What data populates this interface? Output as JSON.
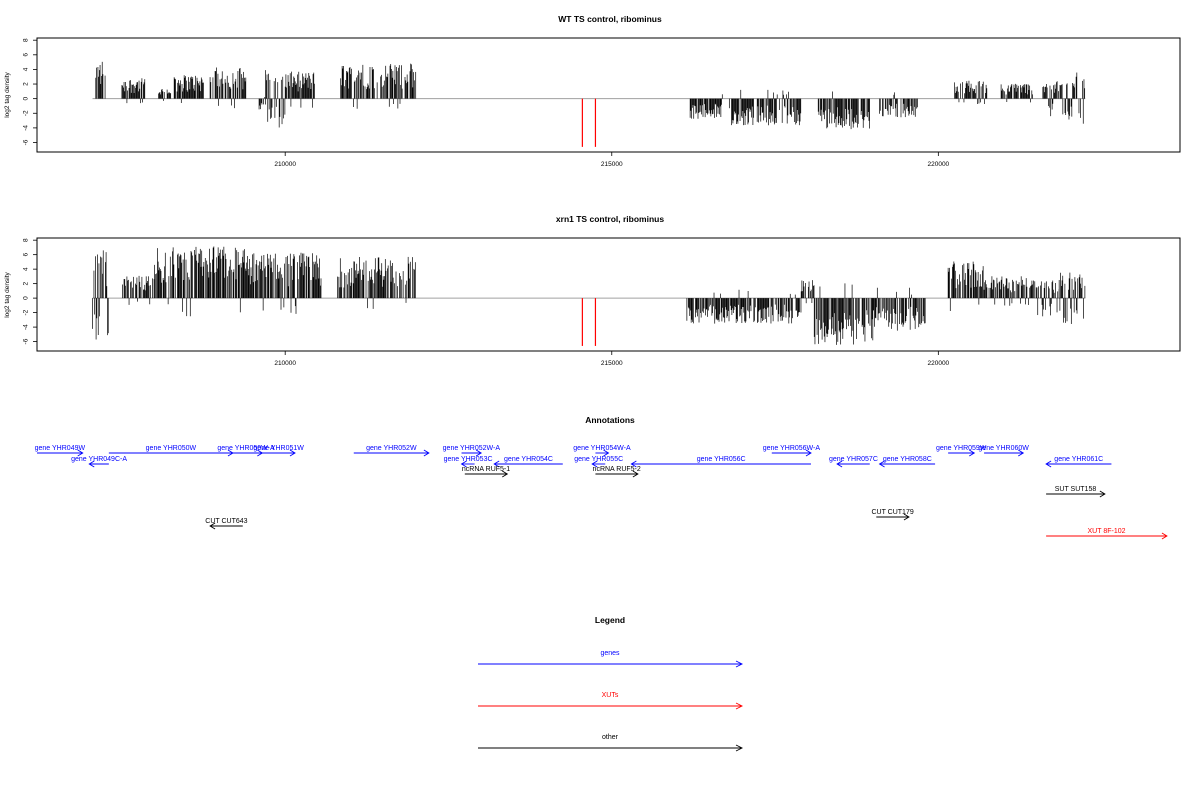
{
  "chart_data": [
    {
      "type": "bar",
      "title": "WT TS control, ribominus",
      "ylabel": "log2 tag density",
      "ylim": [
        -7.3,
        8.3
      ],
      "yticks": [
        -6,
        -4,
        -2,
        0,
        2,
        4,
        6,
        8
      ],
      "xlim": [
        206200,
        223700
      ],
      "xticks": [
        210000,
        215000,
        220000
      ],
      "grid": false,
      "markers": [
        {
          "x": 214550,
          "y": -6.6,
          "color": "#ff0000"
        },
        {
          "x": 214750,
          "y": -6.6,
          "color": "#ff0000"
        }
      ],
      "segments": [
        {
          "from": 207100,
          "to": 207250,
          "strand": "plus",
          "max": 5.3
        },
        {
          "from": 207500,
          "to": 207850,
          "strand": "plus",
          "max": 2.8
        },
        {
          "from": 208050,
          "to": 208250,
          "strand": "plus",
          "max": 1.5
        },
        {
          "from": 208300,
          "to": 208750,
          "strand": "plus",
          "max": 3.3
        },
        {
          "from": 208850,
          "to": 209400,
          "strand": "plus",
          "max": 4.3
        },
        {
          "from": 209600,
          "to": 209700,
          "strand": "minus",
          "max": 1.5
        },
        {
          "from": 209700,
          "to": 210000,
          "strand": "mixed",
          "max": 4.0
        },
        {
          "from": 210000,
          "to": 210450,
          "strand": "plus",
          "max": 3.7
        },
        {
          "from": 210850,
          "to": 212000,
          "strand": "plus",
          "max": 4.8
        },
        {
          "from": 216200,
          "to": 216700,
          "strand": "minus",
          "max": 2.8
        },
        {
          "from": 216800,
          "to": 217900,
          "strand": "minus",
          "max": 3.7
        },
        {
          "from": 218150,
          "to": 218950,
          "strand": "minus",
          "max": 4.2
        },
        {
          "from": 219100,
          "to": 219700,
          "strand": "minus",
          "max": 2.6
        },
        {
          "from": 220250,
          "to": 220750,
          "strand": "plus",
          "max": 2.5
        },
        {
          "from": 220950,
          "to": 221450,
          "strand": "plus",
          "max": 2.1
        },
        {
          "from": 221600,
          "to": 222000,
          "strand": "mixed",
          "max": 2.4
        },
        {
          "from": 222000,
          "to": 222250,
          "strand": "mixed",
          "max": 4.0
        }
      ]
    },
    {
      "type": "bar",
      "title": "xrn1 TS control, ribominus",
      "ylabel": "log2 tag density",
      "ylim": [
        -7.3,
        8.3
      ],
      "yticks": [
        -6,
        -4,
        -2,
        0,
        2,
        4,
        6,
        8
      ],
      "xlim": [
        206200,
        223700
      ],
      "xticks": [
        210000,
        215000,
        220000
      ],
      "grid": false,
      "markers": [
        {
          "x": 214550,
          "y": -6.6,
          "color": "#ff0000"
        },
        {
          "x": 214750,
          "y": -6.6,
          "color": "#ff0000"
        }
      ],
      "segments": [
        {
          "from": 207050,
          "to": 207300,
          "strand": "mixed",
          "max": 6.6
        },
        {
          "from": 207500,
          "to": 208000,
          "strand": "plus",
          "max": 3.1
        },
        {
          "from": 208000,
          "to": 209400,
          "strand": "plus",
          "max": 7.2
        },
        {
          "from": 209400,
          "to": 210550,
          "strand": "plus",
          "max": 6.3
        },
        {
          "from": 210800,
          "to": 212000,
          "strand": "plus",
          "max": 5.7
        },
        {
          "from": 216150,
          "to": 217000,
          "strand": "minus",
          "max": 3.6
        },
        {
          "from": 217000,
          "to": 217900,
          "strand": "minus",
          "max": 3.5
        },
        {
          "from": 217900,
          "to": 218100,
          "strand": "plus",
          "max": 2.5
        },
        {
          "from": 218100,
          "to": 219000,
          "strand": "minus",
          "max": 6.6
        },
        {
          "from": 219000,
          "to": 219800,
          "strand": "minus",
          "max": 4.5
        },
        {
          "from": 220150,
          "to": 220700,
          "strand": "plus",
          "max": 5.3
        },
        {
          "from": 220700,
          "to": 221500,
          "strand": "plus",
          "max": 3.1
        },
        {
          "from": 221500,
          "to": 221850,
          "strand": "mixed",
          "max": 2.6
        },
        {
          "from": 221850,
          "to": 222250,
          "strand": "mixed",
          "max": 3.8
        }
      ]
    }
  ],
  "annotations": {
    "title": "Annotations",
    "genes": [
      {
        "label": "gene YHR049W",
        "strand": "+",
        "from": 206200,
        "to": 206900,
        "row": 0
      },
      {
        "label": "gene YHR049C-A",
        "strand": "-",
        "from": 207000,
        "to": 207300,
        "row": 1
      },
      {
        "label": "gene YHR050W",
        "strand": "+",
        "from": 207300,
        "to": 209200,
        "row": 0
      },
      {
        "label": "gene YHR050W-A",
        "strand": "+",
        "from": 209150,
        "to": 209650,
        "row": 0
      },
      {
        "label": "gene YHR051W",
        "strand": "+",
        "from": 209650,
        "to": 210150,
        "row": 0
      },
      {
        "label": "gene YHR052W",
        "strand": "+",
        "from": 211050,
        "to": 212200,
        "row": 0
      },
      {
        "label": "gene YHR052W-A",
        "strand": "+",
        "from": 212700,
        "to": 213000,
        "row": 0
      },
      {
        "label": "gene YHR053C",
        "strand": "-",
        "from": 212700,
        "to": 212900,
        "row": 1
      },
      {
        "label": "gene YHR054C",
        "strand": "-",
        "from": 213200,
        "to": 214250,
        "row": 1
      },
      {
        "label": "gene YHR054W-A",
        "strand": "+",
        "from": 214750,
        "to": 214950,
        "row": 0
      },
      {
        "label": "gene YHR055C",
        "strand": "-",
        "from": 214700,
        "to": 214900,
        "row": 1
      },
      {
        "label": "gene YHR056C",
        "strand": "-",
        "from": 215300,
        "to": 218050,
        "row": 1
      },
      {
        "label": "gene YHR056W-A",
        "strand": "+",
        "from": 217450,
        "to": 218050,
        "row": 0
      },
      {
        "label": "gene YHR057C",
        "strand": "-",
        "from": 218450,
        "to": 218950,
        "row": 1
      },
      {
        "label": "gene YHR058C",
        "strand": "-",
        "from": 219100,
        "to": 219950,
        "row": 1
      },
      {
        "label": "gene YHR059W",
        "strand": "+",
        "from": 220150,
        "to": 220550,
        "row": 0
      },
      {
        "label": "gene YHR060W",
        "strand": "+",
        "from": 220700,
        "to": 221300,
        "row": 0
      },
      {
        "label": "gene YHR061C",
        "strand": "-",
        "from": 221650,
        "to": 222650,
        "row": 1
      }
    ],
    "ncrnas": [
      {
        "label": "ncRNA RUF5-1",
        "strand": "+",
        "from": 212750,
        "to": 213400,
        "row": 2
      },
      {
        "label": "ncRNA RUF5-2",
        "strand": "+",
        "from": 214750,
        "to": 215400,
        "row": 2
      }
    ],
    "suts": [
      {
        "label": "SUT SUT158",
        "strand": "+",
        "from": 221650,
        "to": 222550,
        "row": 3
      }
    ],
    "cuts": [
      {
        "label": "CUT CUT643",
        "strand": "-",
        "from": 208850,
        "to": 209350,
        "row": 5
      },
      {
        "label": "CUT CUT179",
        "strand": "+",
        "from": 219050,
        "to": 219550,
        "row": 4
      }
    ],
    "xuts": [
      {
        "label": "XUT 8F-102",
        "strand": "+",
        "from": 221650,
        "to": 223500,
        "row": 6
      }
    ]
  },
  "legend": {
    "title": "Legend",
    "items": [
      {
        "label": "genes",
        "color": "#0000ff"
      },
      {
        "label": "XUTs",
        "color": "#ff0000"
      },
      {
        "label": "other",
        "color": "#000000"
      }
    ]
  },
  "colors": {
    "gene": "#0000ff",
    "xut": "#ff0000",
    "other": "#000000",
    "marker": "#ff0000",
    "zero_line": "#a0a0a0"
  }
}
